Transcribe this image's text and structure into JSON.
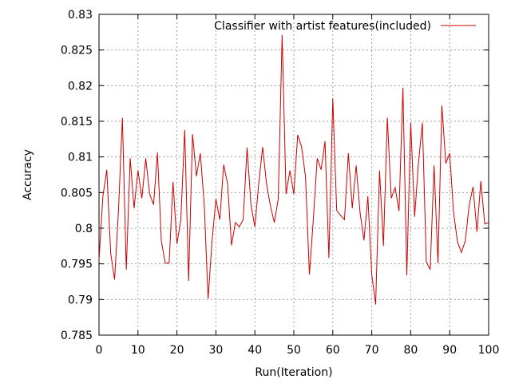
{
  "chart_data": {
    "type": "line",
    "title": "",
    "xlabel": "Run(Iteration)",
    "ylabel": "Accuracy",
    "xlim": [
      0,
      100
    ],
    "ylim": [
      0.785,
      0.83
    ],
    "x_ticks": [
      0,
      10,
      20,
      30,
      40,
      50,
      60,
      70,
      80,
      90,
      100
    ],
    "y_ticks": [
      0.785,
      0.79,
      0.795,
      0.8,
      0.805,
      0.81,
      0.815,
      0.82,
      0.825,
      0.83
    ],
    "grid": true,
    "legend_position": "top-right",
    "colors": {
      "series": "#cc0000",
      "grid": "#a0a0a0",
      "axis": "#000000"
    },
    "series": [
      {
        "name": "Classifier with artist features(included)",
        "x": [
          0,
          1,
          2,
          3,
          4,
          5,
          6,
          7,
          8,
          9,
          10,
          11,
          12,
          13,
          14,
          15,
          16,
          17,
          18,
          19,
          20,
          21,
          22,
          23,
          24,
          25,
          26,
          27,
          28,
          29,
          30,
          31,
          32,
          33,
          34,
          35,
          36,
          37,
          38,
          39,
          40,
          41,
          42,
          43,
          44,
          45,
          46,
          47,
          48,
          49,
          50,
          51,
          52,
          53,
          54,
          55,
          56,
          57,
          58,
          59,
          60,
          61,
          62,
          63,
          64,
          65,
          66,
          67,
          68,
          69,
          70,
          71,
          72,
          73,
          74,
          75,
          76,
          77,
          78,
          79,
          80,
          81,
          82,
          83,
          84,
          85,
          86,
          87,
          88,
          89,
          90,
          91,
          92,
          93,
          94,
          95,
          96,
          97,
          98,
          99,
          100
        ],
        "values": [
          0.7955,
          0.8045,
          0.8082,
          0.7965,
          0.7928,
          0.8025,
          0.8155,
          0.7942,
          0.8098,
          0.8028,
          0.8081,
          0.8042,
          0.8098,
          0.8048,
          0.8033,
          0.8106,
          0.7982,
          0.7951,
          0.7951,
          0.8065,
          0.7978,
          0.8012,
          0.8138,
          0.7926,
          0.8132,
          0.8073,
          0.8105,
          0.8034,
          0.7901,
          0.7981,
          0.8041,
          0.8012,
          0.8089,
          0.8062,
          0.7976,
          0.8008,
          0.8002,
          0.8012,
          0.8113,
          0.8033,
          0.8002,
          0.8063,
          0.8114,
          0.8062,
          0.8031,
          0.8008,
          0.8041,
          0.8271,
          0.8048,
          0.8081,
          0.8048,
          0.8131,
          0.8114,
          0.8072,
          0.7935,
          0.8012,
          0.8098,
          0.8082,
          0.8122,
          0.7958,
          0.8182,
          0.8025,
          0.8018,
          0.8012,
          0.8105,
          0.8028,
          0.8088,
          0.8022,
          0.7983,
          0.8045,
          0.7935,
          0.7893,
          0.8081,
          0.7975,
          0.8155,
          0.8042,
          0.8057,
          0.8024,
          0.8197,
          0.7934,
          0.8148,
          0.8016,
          0.8092,
          0.8148,
          0.7953,
          0.7942,
          0.8088,
          0.7951,
          0.8172,
          0.8091,
          0.8105,
          0.8022,
          0.7981,
          0.7966,
          0.7982,
          0.8032,
          0.8058,
          0.7995,
          0.8066,
          0.8006,
          0.8008
        ]
      }
    ]
  }
}
